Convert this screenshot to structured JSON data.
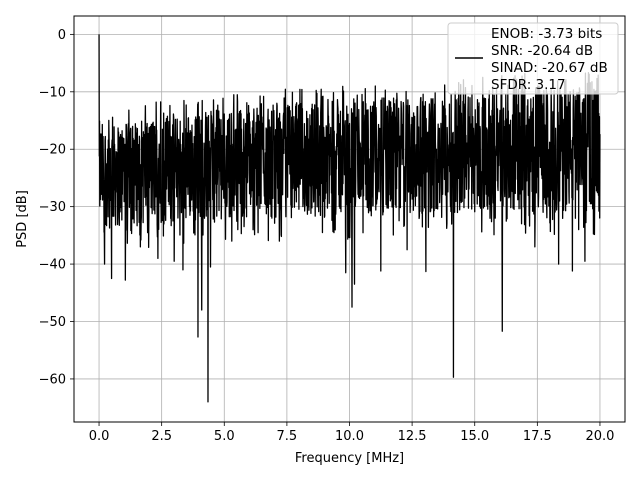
{
  "chart_data": {
    "type": "line",
    "title": "",
    "xlabel": "Frequency [MHz]",
    "ylabel": "PSD [dB]",
    "xlim": [
      -1,
      21
    ],
    "ylim": [
      -67.5,
      3.2
    ],
    "xticks": [
      0.0,
      2.5,
      5.0,
      7.5,
      10.0,
      12.5,
      15.0,
      17.5,
      20.0
    ],
    "xtick_labels": [
      "0.0",
      "2.5",
      "5.0",
      "7.5",
      "10.0",
      "12.5",
      "15.0",
      "17.5",
      "20.0"
    ],
    "yticks": [
      0,
      -10,
      -20,
      -30,
      -40,
      -50,
      -60
    ],
    "ytick_labels": [
      "0",
      "−10",
      "−20",
      "−30",
      "−40",
      "−50",
      "−60"
    ],
    "grid": true,
    "legend_position": "top-right",
    "line_color": "#000000",
    "legend": {
      "lines": [
        "ENOB: -3.73 bits",
        "SNR: -20.64 dB",
        "SINAD: -20.67 dB",
        "SFDR: 3.17"
      ]
    },
    "series": [
      {
        "sample_step_mhz": 0.01,
        "x_range": [
          0,
          20
        ],
        "peak": {
          "x": 0.0,
          "y": 0
        },
        "floor_envelope": {
          "x": [
            0.0,
            0.5,
            2.5,
            5.0,
            7.5,
            10.0,
            12.5,
            15.0,
            17.5,
            20.0
          ],
          "upper": [
            -15,
            -16,
            -14,
            -13,
            -12,
            -11,
            -11,
            -10,
            -9,
            -9
          ],
          "median": [
            -24,
            -22,
            -22,
            -22,
            -21,
            -21,
            -20,
            -20,
            -20,
            -19
          ],
          "lower": [
            -33,
            -34,
            -33,
            -32,
            -32,
            -32,
            -31,
            -31,
            -31,
            -31
          ]
        },
        "notches": [
          {
            "x": 0.22,
            "y": -40
          },
          {
            "x": 0.5,
            "y": -42.5
          },
          {
            "x": 1.05,
            "y": -42.8
          },
          {
            "x": 1.65,
            "y": -37
          },
          {
            "x": 2.35,
            "y": -39
          },
          {
            "x": 3.0,
            "y": -39.5
          },
          {
            "x": 3.35,
            "y": -41
          },
          {
            "x": 3.95,
            "y": -52.7
          },
          {
            "x": 4.1,
            "y": -48
          },
          {
            "x": 4.35,
            "y": -64
          },
          {
            "x": 4.45,
            "y": -40.5
          },
          {
            "x": 5.3,
            "y": -36
          },
          {
            "x": 7.2,
            "y": -36
          },
          {
            "x": 9.85,
            "y": -41.5
          },
          {
            "x": 10.1,
            "y": -47.5
          },
          {
            "x": 10.2,
            "y": -43.5
          },
          {
            "x": 11.25,
            "y": -41.2
          },
          {
            "x": 12.3,
            "y": -37.5
          },
          {
            "x": 13.05,
            "y": -41.3
          },
          {
            "x": 14.15,
            "y": -59.7
          },
          {
            "x": 16.1,
            "y": -51.7
          },
          {
            "x": 17.4,
            "y": -37
          },
          {
            "x": 18.35,
            "y": -40
          },
          {
            "x": 18.9,
            "y": -41.2
          },
          {
            "x": 19.4,
            "y": -39.5
          }
        ]
      }
    ]
  }
}
